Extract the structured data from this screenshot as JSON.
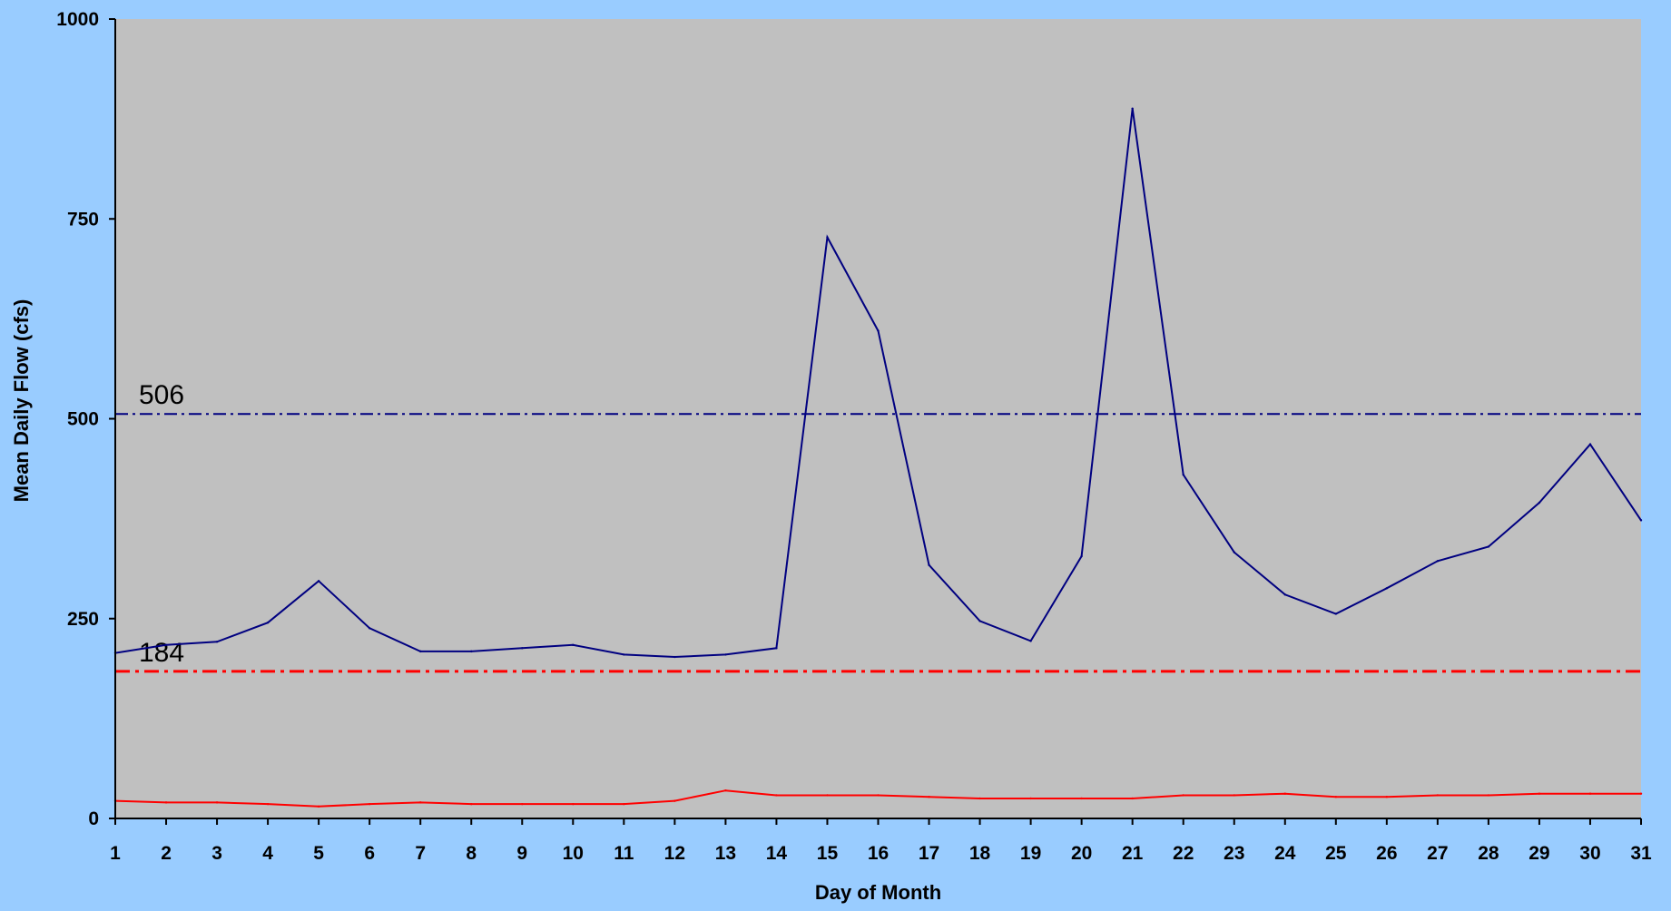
{
  "chart_data": {
    "type": "line",
    "title": "",
    "xlabel": "Day of Month",
    "ylabel": "Mean Daily Flow (cfs)",
    "x": [
      1,
      2,
      3,
      4,
      5,
      6,
      7,
      8,
      9,
      10,
      11,
      12,
      13,
      14,
      15,
      16,
      17,
      18,
      19,
      20,
      21,
      22,
      23,
      24,
      25,
      26,
      27,
      28,
      29,
      30,
      31
    ],
    "xlim": [
      1,
      31
    ],
    "ylim": [
      0,
      1000
    ],
    "yticks": [
      0,
      250,
      500,
      750,
      1000
    ],
    "grid": false,
    "legend": "none",
    "plot_background": "#c0c0c0",
    "page_background": "#99ccff",
    "series": [
      {
        "color": "#000080",
        "values": [
          207,
          217,
          221,
          245,
          297,
          238,
          209,
          209,
          213,
          217,
          205,
          202,
          205,
          213,
          727,
          610,
          317,
          247,
          222,
          328,
          888,
          430,
          333,
          280,
          256,
          288,
          322,
          340,
          395,
          468,
          373
        ]
      },
      {
        "color": "#ff0000",
        "values": [
          22,
          20,
          20,
          18,
          15,
          18,
          20,
          18,
          18,
          18,
          18,
          22,
          35,
          29,
          29,
          29,
          27,
          25,
          25,
          25,
          25,
          29,
          29,
          31,
          27,
          27,
          29,
          29,
          31,
          31,
          31
        ]
      }
    ],
    "reference_lines": [
      {
        "value": 506,
        "label": "506",
        "color": "#000080"
      },
      {
        "value": 184,
        "label": "184",
        "color": "#ff0000"
      }
    ]
  }
}
